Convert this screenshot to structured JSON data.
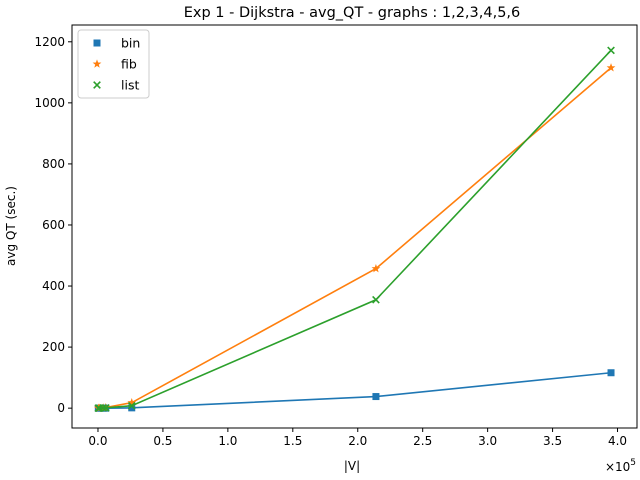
{
  "chart_data": {
    "type": "line",
    "title": "Exp 1 - Dijkstra - avg_QT - graphs : 1,2,3,4,5,6",
    "xlabel": "|V|",
    "ylabel": "avg QT (sec.)",
    "x_offset_text": "×10^5",
    "x_multiplier": 100000,
    "xlim": [
      -20000,
      415000
    ],
    "ylim": [
      -65,
      1255
    ],
    "xticks": [
      0,
      50000,
      100000,
      150000,
      200000,
      250000,
      300000,
      350000,
      400000
    ],
    "xtick_labels": [
      "0.0",
      "0.5",
      "1.0",
      "1.5",
      "2.0",
      "2.5",
      "3.0",
      "3.5",
      "4.0"
    ],
    "yticks": [
      0,
      200,
      400,
      600,
      800,
      1000,
      1200
    ],
    "ytick_labels": [
      "0",
      "200",
      "400",
      "600",
      "800",
      "1000",
      "1200"
    ],
    "grid": false,
    "legend_position": "top-left",
    "x": [
      264,
      1000,
      4000,
      6000,
      26000,
      214000,
      395000
    ],
    "series": [
      {
        "name": "bin",
        "color": "#1f77b4",
        "marker": "square",
        "values": [
          0,
          0,
          0,
          0,
          1,
          38,
          116
        ]
      },
      {
        "name": "fib",
        "color": "#ff7f0e",
        "marker": "star",
        "values": [
          0,
          0,
          1,
          2,
          18,
          457,
          1115
        ]
      },
      {
        "name": "list",
        "color": "#2ca02c",
        "marker": "x",
        "values": [
          0,
          0,
          1,
          1,
          8,
          355,
          1172
        ]
      }
    ]
  }
}
